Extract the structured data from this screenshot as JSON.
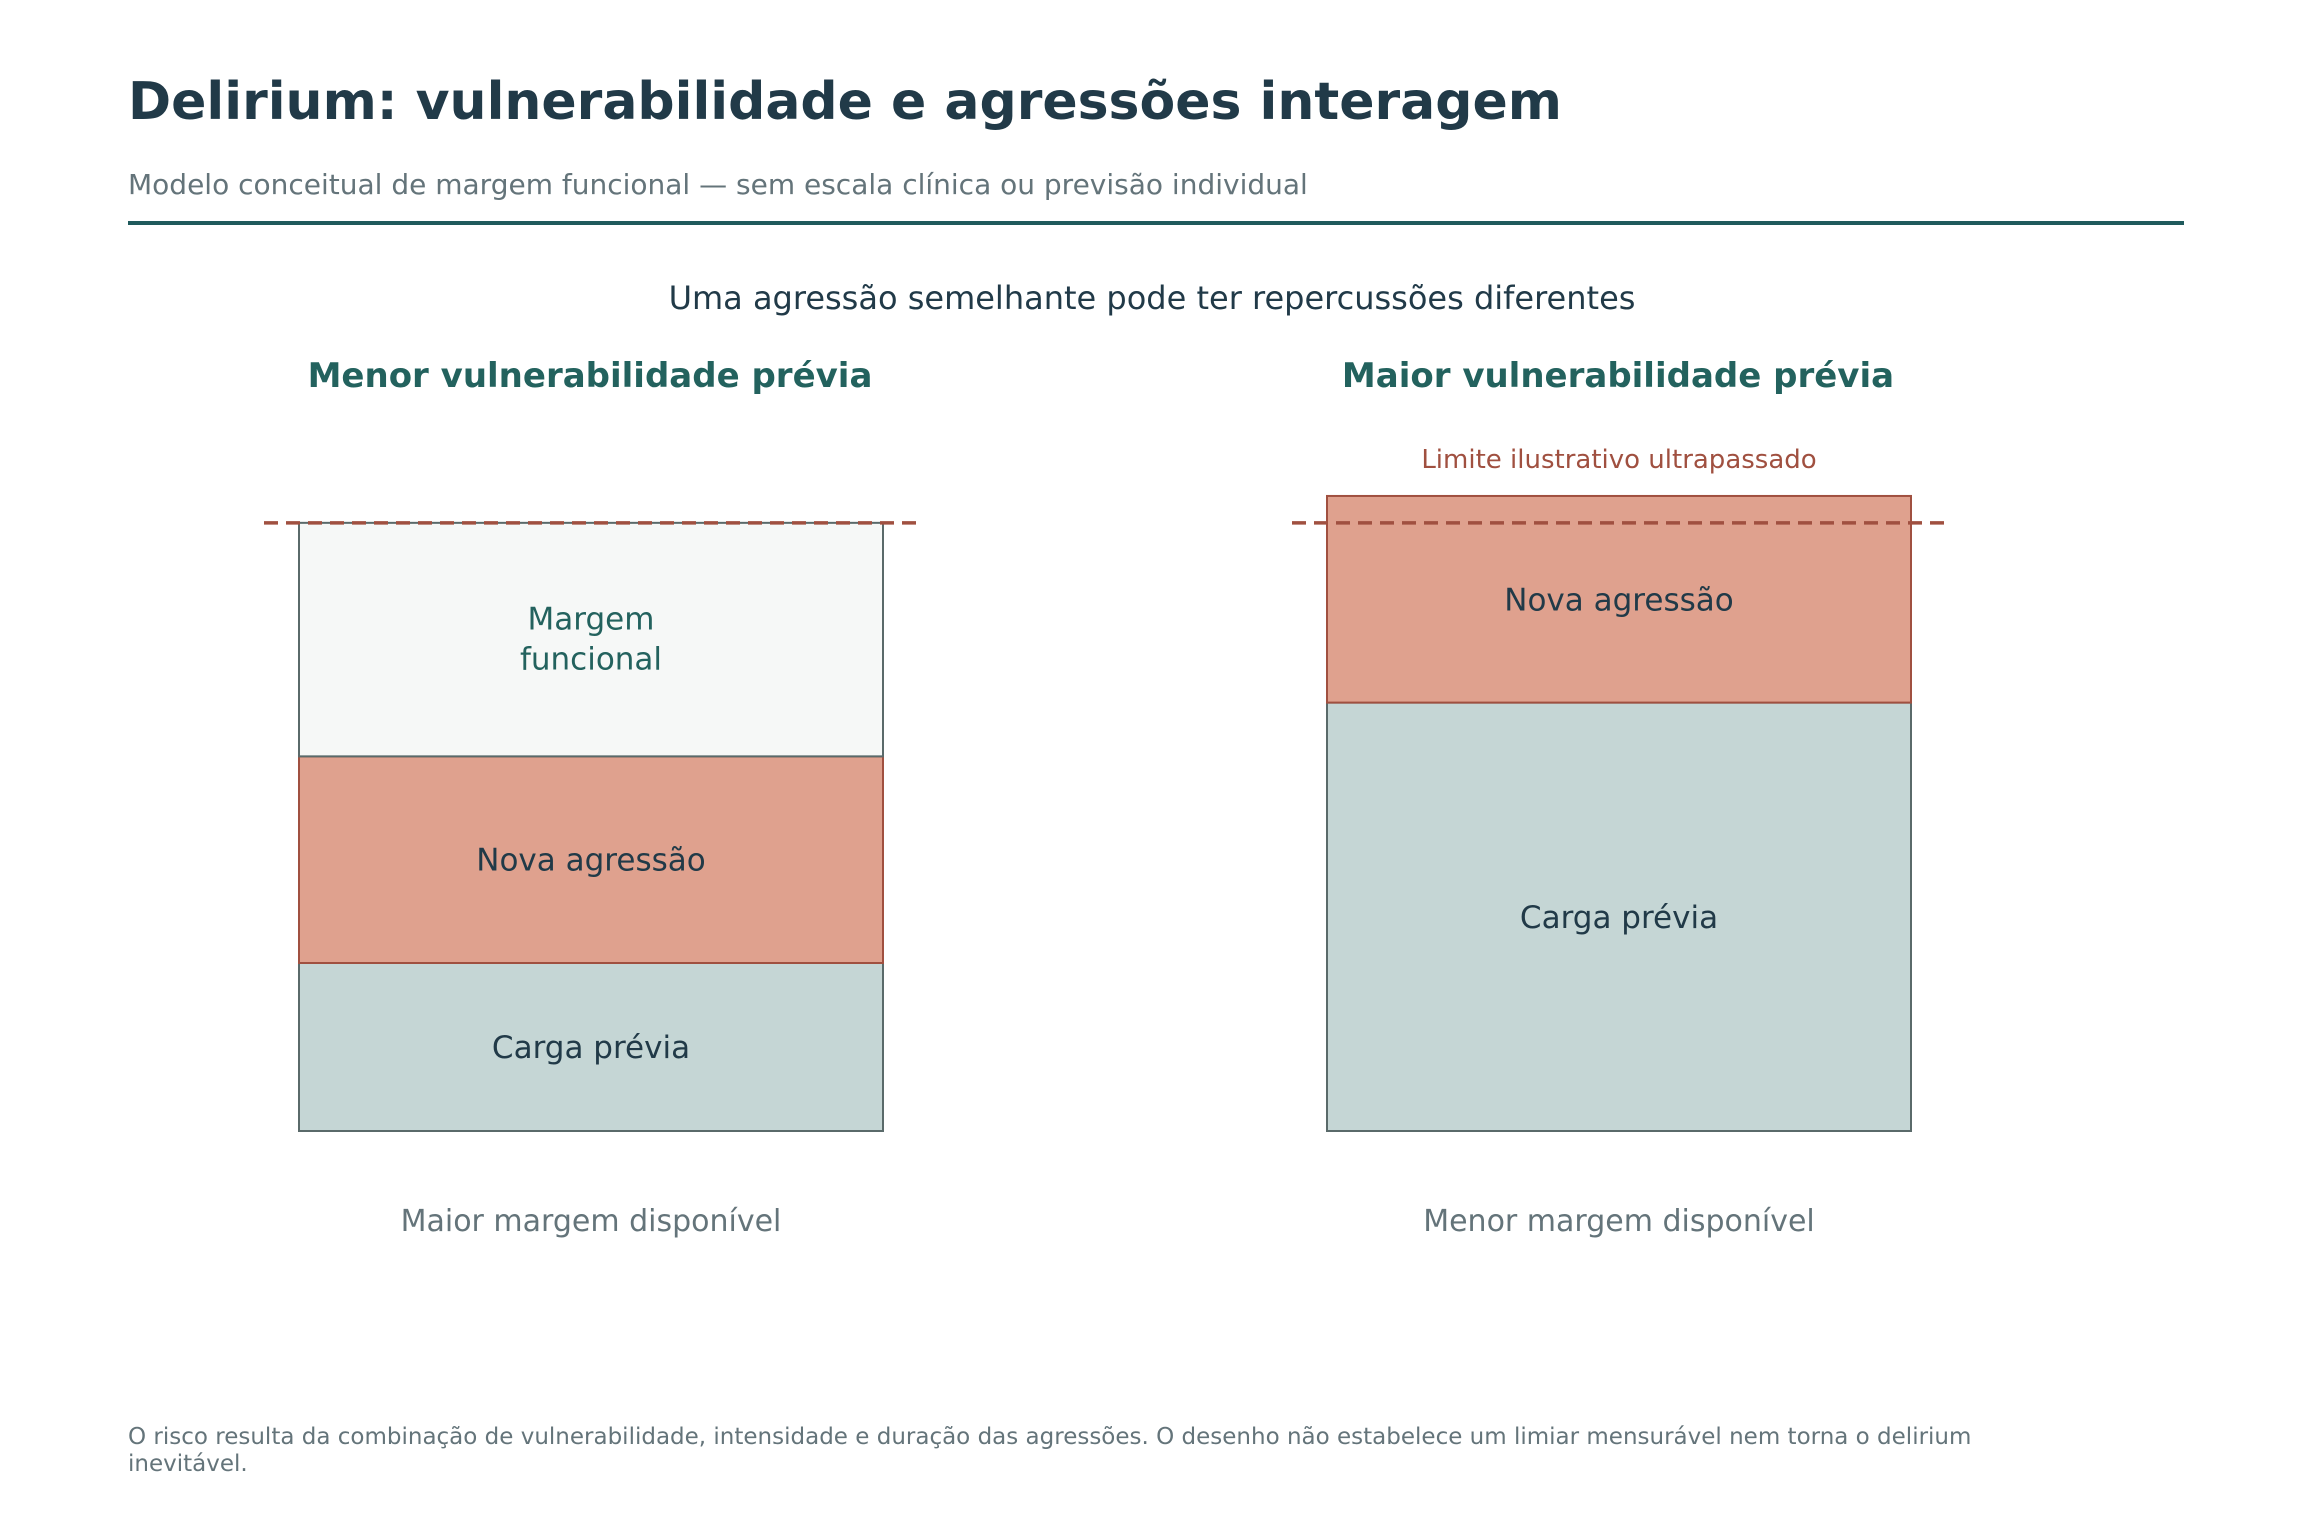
{
  "title": "Delirium: vulnerabilidade e agressões interagem",
  "subtitle": "Modelo conceitual de margem funcional — sem escala clínica ou previsão individual",
  "caption": "Uma agressão semelhante pode ter repercussões diferentes",
  "panels": [
    {
      "heading": "Menor vulnerabilidade prévia",
      "segments": [
        {
          "label": "Carga prévia",
          "value": 1.0
        },
        {
          "label": "Nova agressão",
          "value": 1.23
        },
        {
          "label": "Margem funcional",
          "value": 1.39
        }
      ],
      "footer": "Maior margem disponível",
      "threshold_label": ""
    },
    {
      "heading": "Maior vulnerabilidade prévia",
      "segments": [
        {
          "label": "Carga prévia",
          "value": 2.55
        },
        {
          "label": "Nova agressão",
          "value": 1.23
        }
      ],
      "footer": "Menor margem disponível",
      "threshold_label": "Limite ilustrativo ultrapassado"
    }
  ],
  "threshold": 3.62,
  "colors": {
    "title": "#213a48",
    "accent": "#23625e",
    "carga": "#c5d6d5",
    "agressao": "#dfa18e",
    "margem": "#f6f8f7",
    "threshold": "#a05040",
    "muted": "#64747a"
  },
  "footnote": "O risco resulta da combinação de vulnerabilidade, intensidade e duração das agressões. O desenho não estabelece um limiar mensurável nem torna o delirium inevitável."
}
